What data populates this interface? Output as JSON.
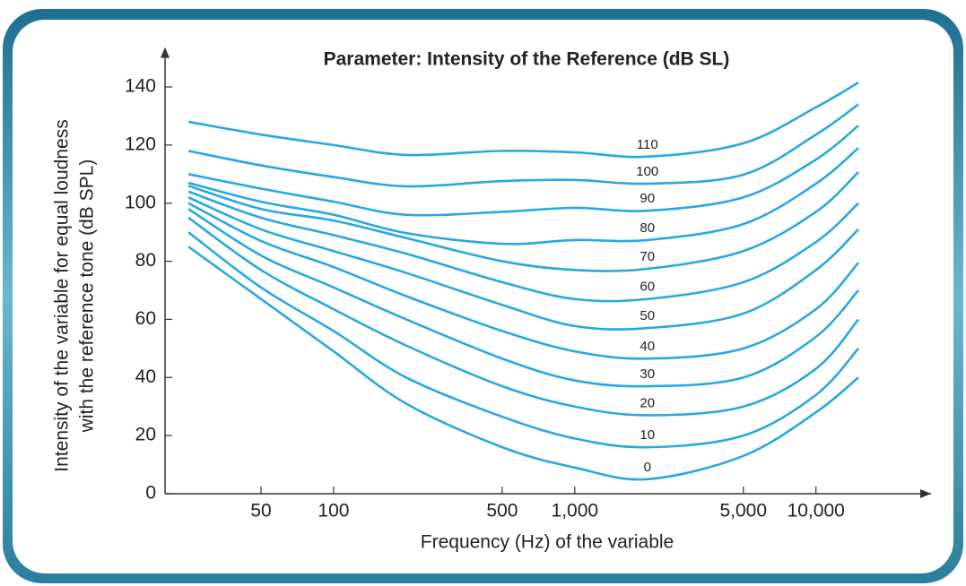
{
  "chart_data": {
    "type": "line",
    "title": "Parameter: Intensity of the Reference (dB SL)",
    "ylabel": [
      "Intensity of the variable for equal loudness",
      "with the reference tone (dB SPL)"
    ],
    "xlabel": "Frequency (Hz) of the variable",
    "xscale": "log",
    "xlim": [
      20,
      30000
    ],
    "ylim": [
      0,
      150
    ],
    "xticks": [
      50,
      100,
      500,
      {
        "value": 1000,
        "label": "1,000"
      },
      {
        "value": 5000,
        "label": "5,000"
      },
      {
        "value": 10000,
        "label": "10,000"
      }
    ],
    "yticks": [
      0,
      20,
      40,
      60,
      80,
      100,
      120,
      140
    ],
    "x": [
      25,
      50,
      100,
      200,
      500,
      1000,
      2000,
      5000,
      10000,
      15000
    ],
    "series": [
      {
        "name": "0",
        "color": "#29a8e0",
        "values": [
          85,
          67,
          49,
          31,
          16,
          9,
          5,
          13,
          28,
          40
        ]
      },
      {
        "name": "10",
        "color": "#29a8e0",
        "values": [
          90,
          71,
          56,
          40,
          26.5,
          19,
          16,
          20,
          34,
          50
        ]
      },
      {
        "name": "20",
        "color": "#29a8e0",
        "values": [
          95,
          77,
          63.5,
          51,
          37,
          30,
          27,
          30,
          43,
          60
        ]
      },
      {
        "name": "30",
        "color": "#29a8e0",
        "values": [
          98,
          82,
          71,
          60,
          46.5,
          39,
          37,
          40,
          54,
          70
        ]
      },
      {
        "name": "40",
        "color": "#29a8e0",
        "values": [
          100,
          87,
          78,
          68,
          56,
          49,
          46.5,
          50,
          63.5,
          79.5
        ]
      },
      {
        "name": "50",
        "color": "#29a8e0",
        "values": [
          102,
          91,
          83.5,
          76,
          65,
          57.7,
          57,
          62,
          77,
          91
        ]
      },
      {
        "name": "60",
        "color": "#29a8e0",
        "values": [
          104,
          95,
          89,
          82.6,
          72.8,
          67,
          67,
          72.8,
          86.6,
          100
        ]
      },
      {
        "name": "70",
        "color": "#29a8e0",
        "values": [
          106,
          98,
          94,
          88,
          80,
          77,
          77.4,
          83.5,
          97,
          110.7
        ]
      },
      {
        "name": "80",
        "color": "#29a8e0",
        "values": [
          107,
          100.5,
          96,
          89.7,
          86,
          87.3,
          87.3,
          92.8,
          106.7,
          119
        ]
      },
      {
        "name": "90",
        "color": "#29a8e0",
        "values": [
          110,
          105,
          100.5,
          96,
          97,
          98.4,
          97.4,
          102,
          115,
          126.7
        ]
      },
      {
        "name": "100",
        "color": "#29a8e0",
        "values": [
          118,
          113,
          109,
          105.8,
          107.6,
          108,
          106.7,
          109.8,
          123.6,
          134
        ]
      },
      {
        "name": "110",
        "color": "#29a8e0",
        "values": [
          128,
          123.6,
          120,
          116.6,
          118,
          117.5,
          116,
          120.6,
          133,
          141.5
        ]
      }
    ]
  }
}
